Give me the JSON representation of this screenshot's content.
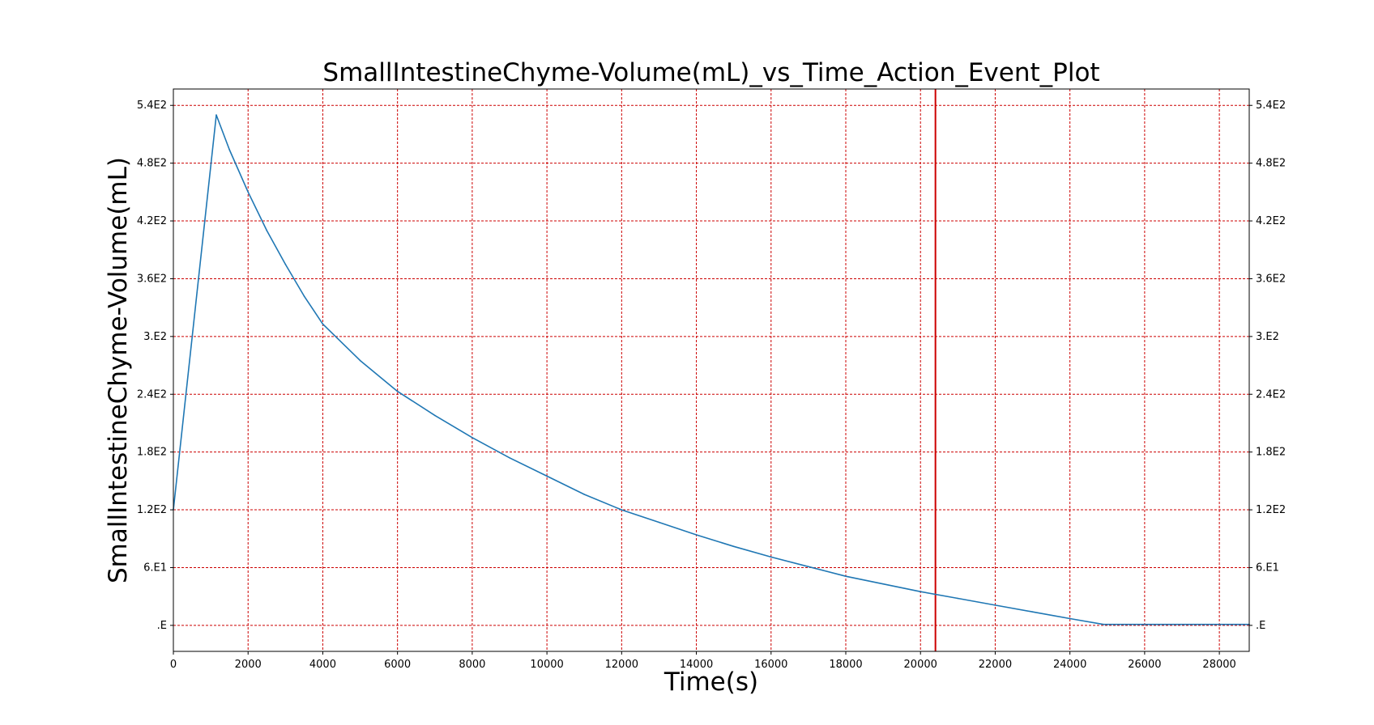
{
  "chart_data": {
    "type": "line",
    "title": "SmallIntestineChyme-Volume(mL)_vs_Time_Action_Event_Plot",
    "xlabel": "Time(s)",
    "ylabel": "SmallIntestineChyme-Volume(mL)",
    "xlim": [
      0,
      28800
    ],
    "ylim": [
      -27,
      557
    ],
    "x_ticks": [
      0,
      2000,
      4000,
      6000,
      8000,
      10000,
      12000,
      14000,
      16000,
      18000,
      20000,
      22000,
      24000,
      26000,
      28000
    ],
    "x_tick_labels": [
      "0",
      "2000",
      "4000",
      "6000",
      "8000",
      "10000",
      "12000",
      "14000",
      "16000",
      "18000",
      "20000",
      "22000",
      "24000",
      "26000",
      "28000"
    ],
    "y_ticks": [
      0,
      60,
      120,
      180,
      240,
      300,
      360,
      420,
      480,
      540
    ],
    "y_tick_labels": [
      ".E",
      "6.E1",
      "1.2E2",
      "1.8E2",
      "2.4E2",
      "3.E2",
      "3.6E2",
      "4.2E2",
      "4.8E2",
      "5.4E2"
    ],
    "right_axis_ticks": true,
    "grid": true,
    "grid_style": "dashed",
    "legend": "none",
    "line_color": "#1f77b4",
    "grid_color": "#cc0000",
    "event_line_color": "#cc0000",
    "event_lines": [
      {
        "x": 20400
      }
    ],
    "series": [
      {
        "x": [
          0,
          1150,
          1500,
          2000,
          2500,
          3000,
          3500,
          4000,
          5000,
          6000,
          7000,
          8000,
          9000,
          10000,
          11000,
          12000,
          13000,
          14000,
          15000,
          16000,
          17000,
          18000,
          19000,
          20000,
          21000,
          22000,
          23000,
          24000,
          24900,
          26000,
          28800
        ],
        "y": [
          120,
          530,
          494,
          450,
          410,
          375,
          342,
          313,
          275,
          243,
          218,
          195,
          174,
          155,
          136,
          120,
          107,
          94,
          82,
          71,
          61,
          51,
          43,
          35,
          28,
          21,
          14,
          7,
          1,
          1,
          1
        ]
      }
    ]
  }
}
